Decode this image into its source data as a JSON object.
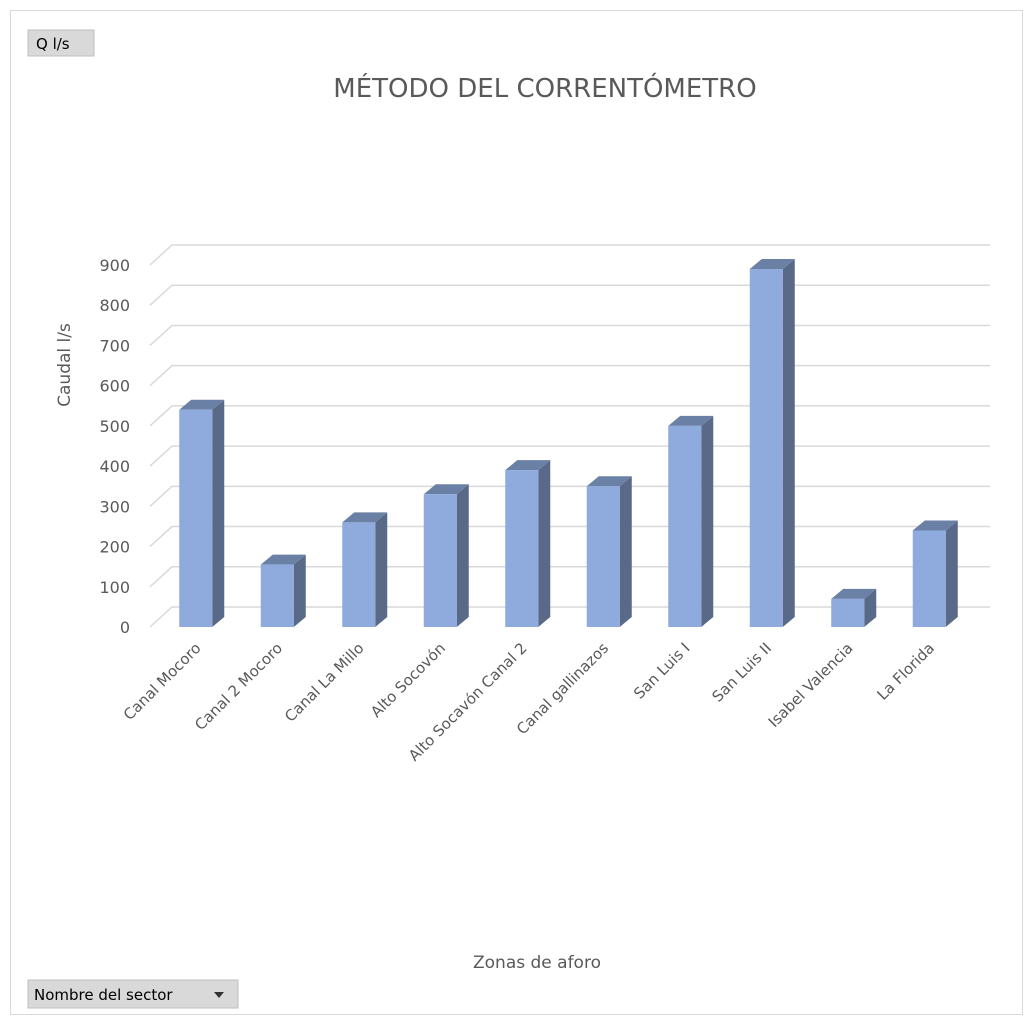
{
  "ui": {
    "value_field": "Q l/s",
    "axis_field": "Nombre del sector"
  },
  "chart_data": {
    "type": "bar3d",
    "title": "MÉTODO DEL CORRENTÓMETRO",
    "x_label": "Zonas de aforo",
    "y_label": "Caudal l/s",
    "categories": [
      "Canal Mocoro",
      "Canal  2 Mocoro",
      "Canal La Millo",
      "Alto Socovón",
      "Alto Socavón Canal 2",
      "Canal gallinazos",
      "San Luis I",
      "San Luis II",
      "Isabel Valencia",
      "La Florida"
    ],
    "values": [
      540,
      155,
      260,
      330,
      390,
      350,
      500,
      890,
      70,
      240
    ],
    "color": "#8faadc",
    "ylim": [
      0,
      900
    ],
    "yticks": [
      0,
      100,
      200,
      300,
      400,
      500,
      600,
      700,
      800,
      900
    ],
    "grid": true
  }
}
